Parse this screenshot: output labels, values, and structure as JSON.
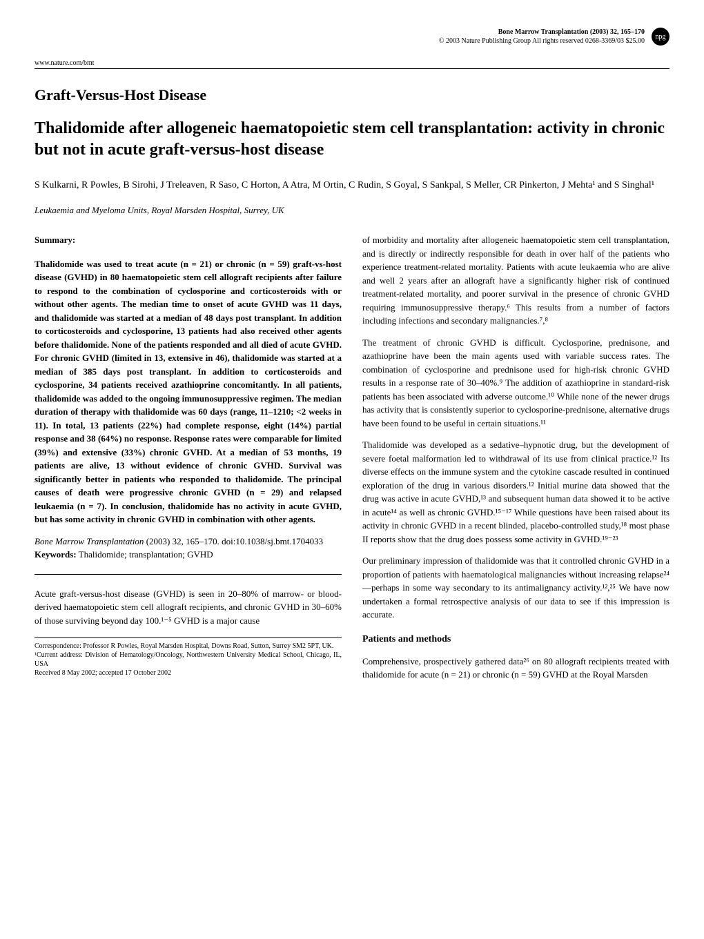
{
  "header": {
    "journal_line1": "Bone Marrow Transplantation (2003) 32, 165–170",
    "journal_line2": "© 2003 Nature Publishing Group   All rights reserved 0268-3369/03 $25.00",
    "url": "www.nature.com/bmt",
    "npg": "npg"
  },
  "section_label": "Graft-Versus-Host Disease",
  "title": "Thalidomide after allogeneic haematopoietic stem cell transplantation: activity in chronic but not in acute graft-versus-host disease",
  "authors": "S Kulkarni, R Powles, B Sirohi, J Treleaven, R Saso, C Horton, A Atra, M Ortin, C Rudin, S Goyal, S Sankpal, S Meller, CR Pinkerton, J Mehta¹ and S Singhal¹",
  "affiliation": "Leukaemia and Myeloma Units, Royal Marsden Hospital, Surrey, UK",
  "left_col": {
    "summary_label": "Summary:",
    "abstract": "Thalidomide was used to treat acute (n = 21) or chronic (n = 59) graft-vs-host disease (GVHD) in 80 haematopoietic stem cell allograft recipients after failure to respond to the combination of cyclosporine and corticosteroids with or without other agents. The median time to onset of acute GVHD was 11 days, and thalidomide was started at a median of 48 days post transplant. In addition to corticosteroids and cyclosporine, 13 patients had also received other agents before thalidomide. None of the patients responded and all died of acute GVHD. For chronic GVHD (limited in 13, extensive in 46), thalidomide was started at a median of 385 days post transplant. In addition to corticosteroids and cyclosporine, 34 patients received azathioprine concomitantly. In all patients, thalidomide was added to the ongoing immunosuppressive regimen. The median duration of therapy with thalidomide was 60 days (range, 11–1210; <2 weeks in 11). In total, 13 patients (22%) had complete response, eight (14%) partial response and 38 (64%) no response. Response rates were comparable for limited (39%) and extensive (33%) chronic GVHD. At a median of 53 months, 19 patients are alive, 13 without evidence of chronic GVHD. Survival was significantly better in patients who responded to thalidomide. The principal causes of death were progressive chronic GVHD (n = 29) and relapsed leukaemia (n = 7). In conclusion, thalidomide has no activity in acute GVHD, but has some activity in chronic GVHD in combination with other agents.",
    "citation_journal": "Bone Marrow Transplantation",
    "citation_rest": " (2003) 32, 165–170. doi:10.1038/sj.bmt.1704033",
    "keywords_label": "Keywords:",
    "keywords_text": "   Thalidomide; transplantation; GVHD",
    "intro_para": "Acute graft-versus-host disease (GVHD) is seen in 20–80% of marrow- or blood-derived haematopoietic stem cell allograft recipients, and chronic GVHD in 30–60% of those surviving beyond day 100.¹⁻⁵ GVHD is a major cause",
    "footnote1": "Correspondence: Professor R Powles, Royal Marsden Hospital, Downs Road, Sutton, Surrey SM2 5PT, UK.",
    "footnote2": "¹Current address: Division of Hematology/Oncology, Northwestern University Medical School, Chicago, IL, USA",
    "footnote3": "Received 8 May 2002; accepted 17 October 2002"
  },
  "right_col": {
    "para1": "of morbidity and mortality after allogeneic haematopoietic stem cell transplantation, and is directly or indirectly responsible for death in over half of the patients who experience treatment-related mortality. Patients with acute leukaemia who are alive and well 2 years after an allograft have a significantly higher risk of continued treatment-related mortality, and poorer survival in the presence of chronic GVHD requiring immunosuppressive therapy.⁶ This results from a number of factors including infections and secondary malignancies.⁷,⁸",
    "para2": "The treatment of chronic GVHD is difficult. Cyclosporine, prednisone, and azathioprine have been the main agents used with variable success rates. The combination of cyclosporine and prednisone used for high-risk chronic GVHD results in a response rate of 30–40%.⁹ The addition of azathioprine in standard-risk patients has been associated with adverse outcome.¹⁰ While none of the newer drugs has activity that is consistently superior to cyclosporine-prednisone, alternative drugs have been found to be useful in certain situations.¹¹",
    "para3": "Thalidomide was developed as a sedative–hypnotic drug, but the development of severe foetal malformation led to withdrawal of its use from clinical practice.¹² Its diverse effects on the immune system and the cytokine cascade resulted in continued exploration of the drug in various disorders.¹² Initial murine data showed that the drug was active in acute GVHD,¹³ and subsequent human data showed it to be active in acute¹⁴ as well as chronic GVHD.¹⁵⁻¹⁷ While questions have been raised about its activity in chronic GVHD in a recent blinded, placebo-controlled study,¹⁸ most phase II reports show that the drug does possess some activity in GVHD.¹⁹⁻²³",
    "para4": "Our preliminary impression of thalidomide was that it controlled chronic GVHD in a proportion of patients with haematological malignancies without increasing relapse²⁴—perhaps in some way secondary to its antimalignancy activity.¹²,²⁵ We have now undertaken a formal retrospective analysis of our data to see if this impression is accurate.",
    "methods_heading": "Patients and methods",
    "methods_para": "Comprehensive, prospectively gathered data²⁶ on 80 allograft recipients treated with thalidomide for acute (n = 21) or chronic (n = 59) GVHD at the Royal Marsden"
  },
  "colors": {
    "text": "#000000",
    "background": "#ffffff",
    "divider": "#000000"
  },
  "fonts": {
    "body_family": "Georgia, Times New Roman, serif",
    "title_size_pt": 18,
    "section_label_size_pt": 16,
    "body_size_pt": 10,
    "footnote_size_pt": 8
  }
}
